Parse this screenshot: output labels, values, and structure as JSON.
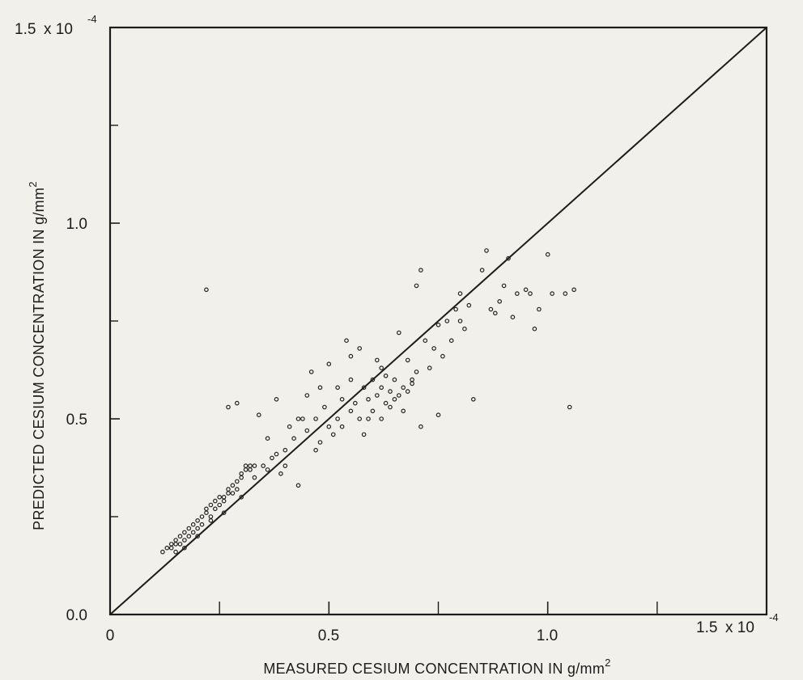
{
  "chart_data": {
    "type": "scatter",
    "title": "",
    "xlabel": "MEASURED CESIUM CONCENTRATION IN g/mm",
    "xlabel_superscript": "2",
    "ylabel": "PREDICTED CESIUM CONCENTRATION IN g/mm",
    "ylabel_superscript": "2",
    "xlim": [
      0,
      1.5
    ],
    "ylim": [
      0,
      1.5
    ],
    "scale_multiplier": "x 10",
    "scale_exponent": "-4",
    "grid": false,
    "legend": "none",
    "x_tick_labels": [
      {
        "value": 0,
        "label": "0"
      },
      {
        "value": 0.5,
        "label": "0.5"
      },
      {
        "value": 1.0,
        "label": "1.0"
      },
      {
        "value": 1.5,
        "label": "1.5"
      }
    ],
    "y_tick_labels": [
      {
        "value": 0,
        "label": "0.0"
      },
      {
        "value": 0.5,
        "label": "0.5"
      },
      {
        "value": 1.0,
        "label": "1.0"
      },
      {
        "value": 1.5,
        "label": "1.5"
      }
    ],
    "minor_ticks": [
      0.25,
      0.75,
      1.25
    ],
    "reference_line": {
      "name": "",
      "x": [
        0,
        1.5
      ],
      "y": [
        0,
        1.5
      ]
    },
    "series": [
      {
        "name": "",
        "points": [
          [
            0.12,
            0.16
          ],
          [
            0.13,
            0.17
          ],
          [
            0.14,
            0.18
          ],
          [
            0.14,
            0.17
          ],
          [
            0.15,
            0.18
          ],
          [
            0.15,
            0.19
          ],
          [
            0.16,
            0.18
          ],
          [
            0.16,
            0.2
          ],
          [
            0.17,
            0.19
          ],
          [
            0.17,
            0.21
          ],
          [
            0.18,
            0.2
          ],
          [
            0.18,
            0.22
          ],
          [
            0.19,
            0.21
          ],
          [
            0.19,
            0.23
          ],
          [
            0.2,
            0.22
          ],
          [
            0.2,
            0.24
          ],
          [
            0.21,
            0.25
          ],
          [
            0.21,
            0.23
          ],
          [
            0.22,
            0.26
          ],
          [
            0.22,
            0.27
          ],
          [
            0.23,
            0.25
          ],
          [
            0.23,
            0.28
          ],
          [
            0.24,
            0.27
          ],
          [
            0.24,
            0.29
          ],
          [
            0.25,
            0.28
          ],
          [
            0.25,
            0.3
          ],
          [
            0.26,
            0.3
          ],
          [
            0.26,
            0.29
          ],
          [
            0.27,
            0.31
          ],
          [
            0.27,
            0.32
          ],
          [
            0.28,
            0.31
          ],
          [
            0.28,
            0.33
          ],
          [
            0.29,
            0.34
          ],
          [
            0.29,
            0.32
          ],
          [
            0.3,
            0.35
          ],
          [
            0.3,
            0.36
          ],
          [
            0.31,
            0.37
          ],
          [
            0.31,
            0.38
          ],
          [
            0.32,
            0.37
          ],
          [
            0.32,
            0.38
          ],
          [
            0.33,
            0.38
          ],
          [
            0.15,
            0.16
          ],
          [
            0.17,
            0.17
          ],
          [
            0.2,
            0.2
          ],
          [
            0.23,
            0.24
          ],
          [
            0.26,
            0.26
          ],
          [
            0.22,
            0.83
          ],
          [
            0.27,
            0.53
          ],
          [
            0.29,
            0.54
          ],
          [
            0.3,
            0.3
          ],
          [
            0.33,
            0.35
          ],
          [
            0.34,
            0.51
          ],
          [
            0.35,
            0.38
          ],
          [
            0.36,
            0.45
          ],
          [
            0.37,
            0.4
          ],
          [
            0.38,
            0.55
          ],
          [
            0.39,
            0.36
          ],
          [
            0.4,
            0.42
          ],
          [
            0.41,
            0.48
          ],
          [
            0.42,
            0.45
          ],
          [
            0.43,
            0.33
          ],
          [
            0.44,
            0.5
          ],
          [
            0.45,
            0.47
          ],
          [
            0.46,
            0.62
          ],
          [
            0.47,
            0.5
          ],
          [
            0.48,
            0.44
          ],
          [
            0.49,
            0.53
          ],
          [
            0.5,
            0.48
          ],
          [
            0.51,
            0.46
          ],
          [
            0.52,
            0.58
          ],
          [
            0.52,
            0.5
          ],
          [
            0.53,
            0.55
          ],
          [
            0.54,
            0.7
          ],
          [
            0.55,
            0.52
          ],
          [
            0.55,
            0.6
          ],
          [
            0.56,
            0.54
          ],
          [
            0.57,
            0.68
          ],
          [
            0.57,
            0.5
          ],
          [
            0.58,
            0.58
          ],
          [
            0.58,
            0.46
          ],
          [
            0.59,
            0.55
          ],
          [
            0.6,
            0.6
          ],
          [
            0.6,
            0.52
          ],
          [
            0.61,
            0.65
          ],
          [
            0.61,
            0.56
          ],
          [
            0.62,
            0.58
          ],
          [
            0.62,
            0.5
          ],
          [
            0.63,
            0.54
          ],
          [
            0.63,
            0.61
          ],
          [
            0.64,
            0.57
          ],
          [
            0.64,
            0.53
          ],
          [
            0.65,
            0.55
          ],
          [
            0.65,
            0.6
          ],
          [
            0.66,
            0.56
          ],
          [
            0.66,
            0.72
          ],
          [
            0.67,
            0.58
          ],
          [
            0.67,
            0.52
          ],
          [
            0.68,
            0.65
          ],
          [
            0.68,
            0.57
          ],
          [
            0.69,
            0.59
          ],
          [
            0.69,
            0.6
          ],
          [
            0.7,
            0.62
          ],
          [
            0.7,
            0.84
          ],
          [
            0.71,
            0.88
          ],
          [
            0.71,
            0.48
          ],
          [
            0.72,
            0.7
          ],
          [
            0.73,
            0.63
          ],
          [
            0.74,
            0.68
          ],
          [
            0.75,
            0.74
          ],
          [
            0.75,
            0.51
          ],
          [
            0.76,
            0.66
          ],
          [
            0.77,
            0.75
          ],
          [
            0.78,
            0.7
          ],
          [
            0.79,
            0.78
          ],
          [
            0.8,
            0.82
          ],
          [
            0.8,
            0.75
          ],
          [
            0.81,
            0.73
          ],
          [
            0.82,
            0.79
          ],
          [
            0.83,
            0.55
          ],
          [
            0.85,
            0.88
          ],
          [
            0.86,
            0.93
          ],
          [
            0.87,
            0.78
          ],
          [
            0.88,
            0.77
          ],
          [
            0.89,
            0.8
          ],
          [
            0.9,
            0.84
          ],
          [
            0.91,
            0.91
          ],
          [
            0.92,
            0.76
          ],
          [
            0.93,
            0.82
          ],
          [
            0.95,
            0.83
          ],
          [
            0.96,
            0.82
          ],
          [
            0.97,
            0.73
          ],
          [
            0.98,
            0.78
          ],
          [
            1.0,
            0.92
          ],
          [
            1.01,
            0.82
          ],
          [
            1.04,
            0.82
          ],
          [
            1.06,
            0.83
          ],
          [
            1.05,
            0.53
          ],
          [
            0.45,
            0.56
          ],
          [
            0.5,
            0.64
          ],
          [
            0.55,
            0.66
          ],
          [
            0.4,
            0.38
          ],
          [
            0.47,
            0.42
          ],
          [
            0.53,
            0.48
          ],
          [
            0.59,
            0.5
          ],
          [
            0.62,
            0.63
          ],
          [
            0.48,
            0.58
          ],
          [
            0.43,
            0.5
          ],
          [
            0.36,
            0.37
          ],
          [
            0.38,
            0.41
          ]
        ]
      }
    ]
  }
}
